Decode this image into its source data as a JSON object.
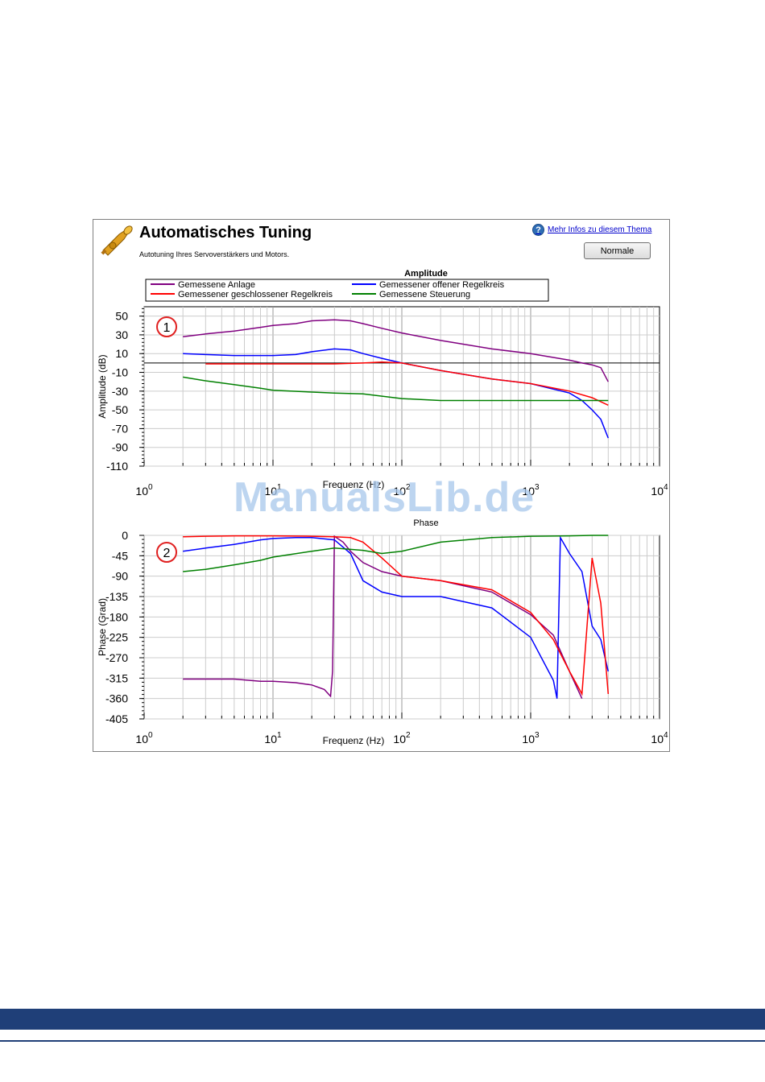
{
  "panel": {
    "title": "Automatisches Tuning",
    "subtitle": "Autotuning Ihres Servoverstärkers und Motors.",
    "help_link": "Mehr Infos zu diesem Thema",
    "help_icon": "help-icon",
    "normal_button": "Normale",
    "trumpet_icon": "trumpet-icon"
  },
  "colors": {
    "anlage": "#800080",
    "geschlossen": "#ff0000",
    "offen": "#0000ff",
    "steuerung": "#008000",
    "footer": "#1f3f78"
  },
  "watermark": "ManualsLib.de",
  "chart_data": [
    {
      "type": "line",
      "title": "Amplitude",
      "xlabel": "Frequenz (Hz)",
      "ylabel": "Amplitude (dB)",
      "x_scale": "log",
      "xlim": [
        1,
        10000
      ],
      "ylim": [
        -110,
        60
      ],
      "yticks": [
        50,
        30,
        10,
        -10,
        -30,
        -50,
        -70,
        -90,
        -110
      ],
      "ytick_labels": [
        "50",
        "30",
        "10",
        "-10",
        "-30",
        "-50",
        "-70",
        "-90",
        "-110"
      ],
      "xticks": [
        1,
        10,
        100,
        1000,
        10000
      ],
      "xtick_base": "10",
      "xtick_exponents": [
        "0",
        "1",
        "2",
        "3",
        "4"
      ],
      "grid": true,
      "legend_position": "top",
      "marker": "1",
      "series": [
        {
          "name": "Gemessene Anlage",
          "color": "#800080",
          "x": [
            2,
            3,
            5,
            8,
            10,
            15,
            20,
            30,
            40,
            50,
            70,
            100,
            200,
            500,
            1000,
            2000,
            2500,
            3000,
            3500,
            4000
          ],
          "y": [
            28,
            31,
            34,
            38,
            40,
            42,
            45,
            46,
            45,
            42,
            37,
            32,
            24,
            15,
            10,
            3,
            0,
            -2,
            -5,
            -20
          ]
        },
        {
          "name": "Gemessener offener Regelkreis",
          "color": "#0000ff",
          "x": [
            2,
            3,
            5,
            8,
            10,
            15,
            20,
            30,
            40,
            50,
            70,
            100,
            200,
            500,
            1000,
            2000,
            2500,
            3000,
            3500,
            4000
          ],
          "y": [
            10,
            9,
            8,
            8,
            8,
            9,
            12,
            15,
            14,
            10,
            5,
            0,
            -8,
            -17,
            -22,
            -32,
            -40,
            -50,
            -60,
            -80
          ]
        },
        {
          "name": "Gemessener geschlossener Regelkreis",
          "color": "#ff0000",
          "x": [
            3,
            5,
            10,
            20,
            30,
            50,
            70,
            100,
            200,
            500,
            1000,
            2000,
            3000,
            4000
          ],
          "y": [
            -1,
            -1,
            -1,
            -1,
            -1,
            0,
            1,
            0,
            -8,
            -17,
            -22,
            -30,
            -37,
            -45
          ]
        },
        {
          "name": "Gemessene Steuerung",
          "color": "#008000",
          "x": [
            2,
            3,
            5,
            8,
            10,
            20,
            30,
            50,
            100,
            200,
            500,
            1000,
            2000,
            3000,
            4000
          ],
          "y": [
            -15,
            -19,
            -23,
            -27,
            -29,
            -31,
            -32,
            -33,
            -38,
            -40,
            -40,
            -40,
            -40,
            -40,
            -40
          ]
        }
      ]
    },
    {
      "type": "line",
      "title": "Phase",
      "xlabel": "Frequenz (Hz)",
      "ylabel": "Phase (Grad)",
      "x_scale": "log",
      "xlim": [
        1,
        10000
      ],
      "ylim": [
        -405,
        0
      ],
      "yticks": [
        0,
        -45,
        -90,
        -135,
        -180,
        -225,
        -270,
        -315,
        -360,
        -405
      ],
      "ytick_labels": [
        "0",
        "-45",
        "-90",
        "-135",
        "-180",
        "-225",
        "-270",
        "-315",
        "-360",
        "-405"
      ],
      "xticks": [
        1,
        10,
        100,
        1000,
        10000
      ],
      "xtick_base": "10",
      "xtick_exponents": [
        "0",
        "1",
        "2",
        "3",
        "4"
      ],
      "grid": true,
      "marker": "2",
      "series": [
        {
          "name": "Gemessene Anlage",
          "color": "#800080",
          "x": [
            2,
            3,
            5,
            8,
            10,
            15,
            20,
            25,
            28,
            29,
            30,
            35,
            40,
            50,
            70,
            100,
            200,
            500,
            1000,
            1500,
            2000,
            2500
          ],
          "y": [
            -317,
            -317,
            -317,
            -322,
            -322,
            -325,
            -330,
            -340,
            -355,
            -300,
            -2,
            -15,
            -35,
            -60,
            -80,
            -90,
            -100,
            -125,
            -175,
            -220,
            -300,
            -360
          ]
        },
        {
          "name": "Gemessener offener Regelkreis",
          "color": "#0000ff",
          "x": [
            2,
            3,
            5,
            8,
            10,
            15,
            20,
            30,
            40,
            50,
            70,
            100,
            200,
            500,
            1000,
            1500,
            1600,
            1700,
            2000,
            2500,
            3000,
            3500,
            4000
          ],
          "y": [
            -35,
            -28,
            -20,
            -10,
            -7,
            -5,
            -5,
            -10,
            -40,
            -100,
            -125,
            -135,
            -135,
            -160,
            -225,
            -320,
            -360,
            -5,
            -40,
            -80,
            -200,
            -230,
            -300
          ]
        },
        {
          "name": "Gemessener geschlossener Regelkreis",
          "color": "#ff0000",
          "x": [
            2,
            3,
            5,
            10,
            20,
            30,
            40,
            50,
            70,
            100,
            200,
            500,
            1000,
            1500,
            2000,
            2500,
            3000,
            3500,
            4000
          ],
          "y": [
            -3,
            -2,
            -1,
            -1,
            -2,
            -3,
            -5,
            -15,
            -50,
            -90,
            -100,
            -120,
            -170,
            -230,
            -300,
            -350,
            -50,
            -150,
            -350
          ]
        },
        {
          "name": "Gemessene Steuerung",
          "color": "#008000",
          "x": [
            2,
            3,
            5,
            8,
            10,
            20,
            30,
            50,
            70,
            100,
            200,
            500,
            1000,
            2000,
            3000,
            4000
          ],
          "y": [
            -80,
            -75,
            -65,
            -55,
            -48,
            -35,
            -28,
            -33,
            -40,
            -35,
            -15,
            -5,
            -2,
            -1,
            0,
            0
          ]
        }
      ]
    }
  ]
}
